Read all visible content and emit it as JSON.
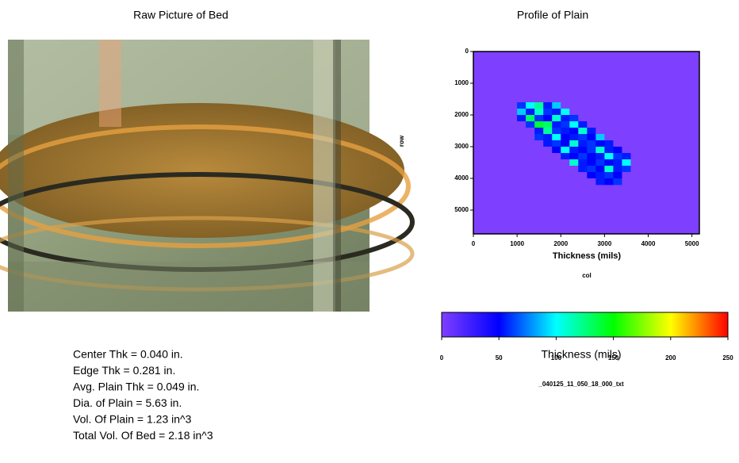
{
  "left_panel": {
    "title": "Raw Picture of Bed",
    "stats": [
      "Center Thk = 0.040 in.",
      "Edge Thk = 0.281 in.",
      "Avg. Plain Thk = 0.049 in.",
      "Dia. of Plain = 5.63 in.",
      "Vol. Of Plain = 1.23 in^3",
      "Total Vol. Of Bed = 2.18 in^3"
    ]
  },
  "chart_data": {
    "type": "heatmap",
    "title": "Profile of Plain",
    "xlabel": "col",
    "ylabel": "row",
    "annotation": "Thickness (mils)",
    "xlim": [
      0,
      5170
    ],
    "ylim": [
      0,
      5750
    ],
    "xticks": [
      0,
      1000,
      2000,
      3000,
      4000,
      5000
    ],
    "yticks": [
      0,
      1000,
      2000,
      3000,
      4000,
      5000
    ],
    "x": [
      1100,
      1300,
      1500,
      1700,
      1900,
      2100,
      2300,
      2500,
      2700,
      2900,
      3100,
      3300,
      3500,
      3700
    ],
    "y": [
      1700,
      1900,
      2100,
      2300,
      2500,
      2700,
      2900,
      3100,
      3300,
      3500,
      3700,
      3900,
      4100
    ],
    "z": [
      [
        60,
        100,
        120,
        55,
        90,
        0,
        0,
        0,
        0,
        0,
        0,
        0,
        0,
        0
      ],
      [
        90,
        55,
        110,
        60,
        55,
        100,
        0,
        0,
        0,
        0,
        0,
        0,
        0,
        0
      ],
      [
        55,
        130,
        60,
        50,
        110,
        55,
        60,
        0,
        0,
        0,
        0,
        0,
        0,
        0
      ],
      [
        0,
        60,
        140,
        130,
        55,
        60,
        100,
        55,
        0,
        0,
        0,
        0,
        0,
        0
      ],
      [
        0,
        0,
        55,
        120,
        60,
        55,
        50,
        110,
        55,
        0,
        0,
        0,
        0,
        0
      ],
      [
        0,
        0,
        60,
        55,
        100,
        50,
        55,
        60,
        50,
        90,
        0,
        0,
        0,
        0
      ],
      [
        0,
        0,
        0,
        55,
        60,
        50,
        110,
        55,
        60,
        50,
        55,
        0,
        0,
        0
      ],
      [
        0,
        0,
        0,
        0,
        50,
        100,
        55,
        50,
        60,
        110,
        55,
        50,
        0,
        0
      ],
      [
        0,
        0,
        0,
        0,
        0,
        55,
        50,
        60,
        50,
        55,
        100,
        60,
        55,
        0
      ],
      [
        0,
        0,
        0,
        0,
        0,
        0,
        110,
        55,
        50,
        60,
        50,
        55,
        100,
        0
      ],
      [
        0,
        0,
        0,
        0,
        0,
        0,
        0,
        55,
        60,
        50,
        110,
        55,
        60,
        0
      ],
      [
        0,
        0,
        0,
        0,
        0,
        0,
        0,
        0,
        50,
        55,
        60,
        50,
        0,
        0
      ],
      [
        0,
        0,
        0,
        0,
        0,
        0,
        0,
        0,
        0,
        55,
        50,
        60,
        0,
        0
      ]
    ],
    "colorbar": {
      "lim": [
        0,
        250
      ],
      "ticks": [
        0,
        50,
        100,
        150,
        200,
        250
      ],
      "label": "Thickness (mils)",
      "caption": "_040125_11_050_18_000_txt",
      "colors": [
        "#7f3fff",
        "#0000ff",
        "#00ffff",
        "#00ff00",
        "#ffff00",
        "#ff0000"
      ]
    }
  }
}
